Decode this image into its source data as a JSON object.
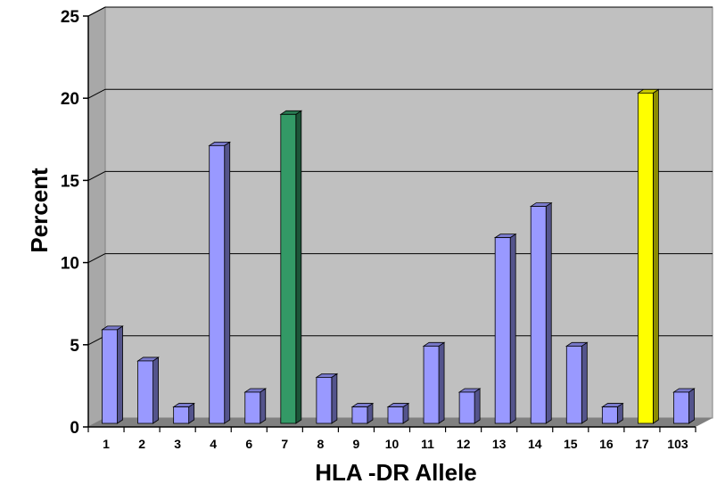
{
  "chart_data": {
    "type": "bar",
    "title": "",
    "xlabel": "HLA -DR Allele",
    "ylabel": "Percent",
    "ylim": [
      0,
      25
    ],
    "yticks": [
      0,
      5,
      10,
      15,
      20,
      25
    ],
    "grid": true,
    "categories": [
      "1",
      "2",
      "3",
      "4",
      "6",
      "7",
      "8",
      "9",
      "10",
      "11",
      "12",
      "13",
      "14",
      "15",
      "16",
      "17",
      "103"
    ],
    "values": [
      5.7,
      3.8,
      1.0,
      16.9,
      1.9,
      18.8,
      2.8,
      1.0,
      1.0,
      4.7,
      1.9,
      11.3,
      13.2,
      4.7,
      1.0,
      20.1,
      1.9
    ],
    "bar_colors": [
      "#9999ff",
      "#9999ff",
      "#9999ff",
      "#9999ff",
      "#9999ff",
      "#339966",
      "#9999ff",
      "#9999ff",
      "#9999ff",
      "#9999ff",
      "#9999ff",
      "#9999ff",
      "#9999ff",
      "#9999ff",
      "#9999ff",
      "#ffff00",
      "#9999ff"
    ]
  },
  "colors": {
    "plot_background": "#c0c0c0",
    "floor": "#808080",
    "default_bar": "#9999ff",
    "highlight_green": "#339966",
    "highlight_yellow": "#ffff00"
  }
}
